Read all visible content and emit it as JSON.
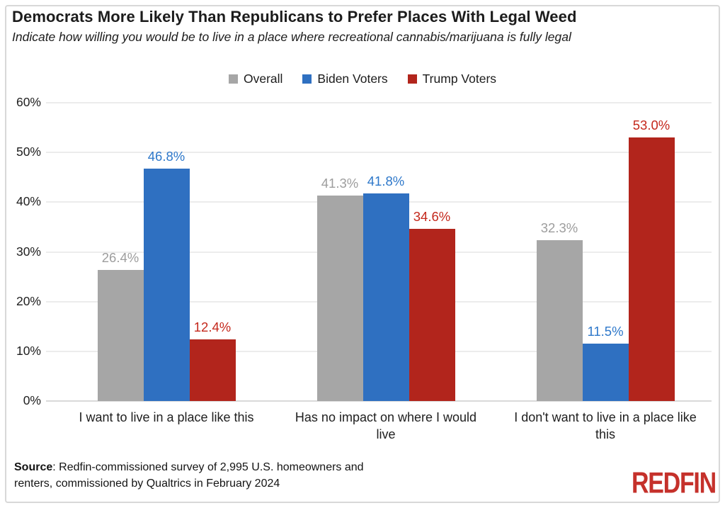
{
  "window": {
    "background": "#ffffff",
    "border_color": "#d8d8d8"
  },
  "header": {
    "title": "Democrats More Likely Than Republicans to Prefer Places With Legal Weed",
    "subtitle": "Indicate how willing you would be to live in a place where recreational cannabis/marijuana is fully legal"
  },
  "chart_data": {
    "type": "bar",
    "title": "Democrats More Likely Than Republicans to Prefer Places With Legal Weed",
    "subtitle": "Indicate how willing you would be to live in a place where recreational cannabis/marijuana is fully legal",
    "categories": [
      "I want to live in a place like this",
      "Has no impact on where I would live",
      "I don't want to live in a place like this"
    ],
    "categories_wrapped": [
      [
        "I want to live in a place like this"
      ],
      [
        "Has no impact on where I would",
        "live"
      ],
      [
        "I don't want to live in a place like",
        "this"
      ]
    ],
    "series": [
      {
        "name": "Overall",
        "color": "#a6a6a6",
        "label_color": "#9d9d9d",
        "values": [
          26.4,
          41.3,
          32.3
        ]
      },
      {
        "name": "Biden Voters",
        "color": "#2f70c1",
        "label_color": "#2e78ca",
        "values": [
          46.8,
          41.8,
          11.5
        ]
      },
      {
        "name": "Trump Voters",
        "color": "#b2251c",
        "label_color": "#c4281c",
        "values": [
          12.4,
          34.6,
          53.0
        ]
      }
    ],
    "value_suffix": "%",
    "value_decimals": 1,
    "ylim": [
      0,
      60
    ],
    "ytick_step": 10,
    "ytick_suffix": "%",
    "ytick_labels": [
      "0%",
      "10%",
      "20%",
      "30%",
      "40%",
      "50%",
      "60%"
    ],
    "grid": true,
    "legend_position": "top-center"
  },
  "footer": {
    "source_label": "Source",
    "source_rest_line1": ": Redfin-commissioned survey of 2,995 U.S. homeowners and",
    "source_line2": "renters, commissioned by Qualtrics in February 2024",
    "logo_text": "REDFIN",
    "logo_color": "#c5312b"
  }
}
